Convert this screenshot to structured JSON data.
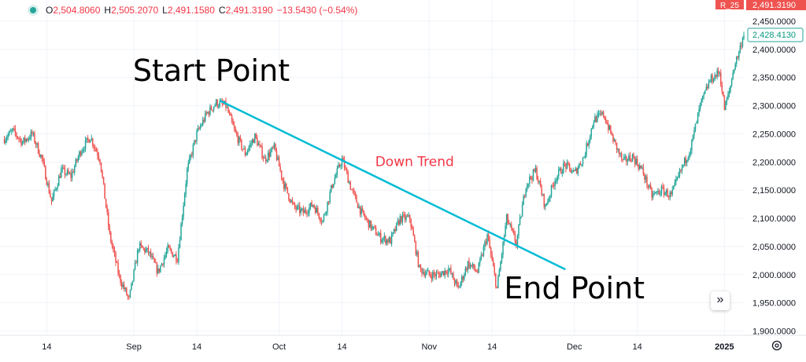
{
  "legend": {
    "open_key": "O",
    "open": "2,504.8060",
    "high_key": "H",
    "high": "2,505.2070",
    "low_key": "L",
    "low": "2,491.1580",
    "close_key": "C",
    "close": "2,491.3190",
    "change": "−13.5430 (−0.54%)"
  },
  "price_scale": {
    "symbol_tag": "R_25",
    "last_price": "2,491.3190",
    "crosshair_price": "2,428.4130"
  },
  "go_to_realtime_icon": "»",
  "colors": {
    "up": "#26a69a",
    "down": "#ef5350",
    "trendline": "#00bcd4",
    "annotation": "#f23645",
    "grid": "#f0f3fa"
  },
  "chart_data": {
    "type": "candlestick",
    "ylim": [
      1890,
      2460
    ],
    "y_ticks": [
      "2,450.0000",
      "2,400.0000",
      "2,350.0000",
      "2,300.0000",
      "2,250.0000",
      "2,200.0000",
      "2,150.0000",
      "2,100.0000",
      "2,050.0000",
      "2,000.0000",
      "1,950.0000",
      "1,900.0000"
    ],
    "y_tick_values": [
      2450,
      2400,
      2350,
      2300,
      2250,
      2200,
      2150,
      2100,
      2050,
      2000,
      1950,
      1900
    ],
    "x_ticks": [
      {
        "label": "14",
        "date": "2024-08-14",
        "bold": false
      },
      {
        "label": "Sep",
        "date": "2024-09-01",
        "bold": false
      },
      {
        "label": "14",
        "date": "2024-09-14",
        "bold": false
      },
      {
        "label": "Oct",
        "date": "2024-10-01",
        "bold": false
      },
      {
        "label": "14",
        "date": "2024-10-14",
        "bold": false
      },
      {
        "label": "Nov",
        "date": "2024-11-01",
        "bold": false
      },
      {
        "label": "14",
        "date": "2024-11-14",
        "bold": false
      },
      {
        "label": "Dec",
        "date": "2024-12-01",
        "bold": false
      },
      {
        "label": "14",
        "date": "2024-12-14",
        "bold": false
      },
      {
        "label": "2025",
        "date": "2025-01-01",
        "bold": true
      }
    ],
    "xlim": [
      "2024-08-05",
      "2025-01-05"
    ],
    "price_path": [
      [
        "2024-08-05",
        2240
      ],
      [
        "2024-08-07",
        2255
      ],
      [
        "2024-08-09",
        2235
      ],
      [
        "2024-08-11",
        2250
      ],
      [
        "2024-08-13",
        2205
      ],
      [
        "2024-08-15",
        2130
      ],
      [
        "2024-08-17",
        2185
      ],
      [
        "2024-08-19",
        2175
      ],
      [
        "2024-08-21",
        2220
      ],
      [
        "2024-08-23",
        2245
      ],
      [
        "2024-08-25",
        2205
      ],
      [
        "2024-08-27",
        2070
      ],
      [
        "2024-08-29",
        1995
      ],
      [
        "2024-08-31",
        1955
      ],
      [
        "2024-09-02",
        2050
      ],
      [
        "2024-09-04",
        2040
      ],
      [
        "2024-09-06",
        2005
      ],
      [
        "2024-09-08",
        2045
      ],
      [
        "2024-09-10",
        2030
      ],
      [
        "2024-09-12",
        2185
      ],
      [
        "2024-09-14",
        2250
      ],
      [
        "2024-09-16",
        2285
      ],
      [
        "2024-09-18",
        2305
      ],
      [
        "2024-09-20",
        2300
      ],
      [
        "2024-09-22",
        2250
      ],
      [
        "2024-09-24",
        2215
      ],
      [
        "2024-09-26",
        2245
      ],
      [
        "2024-09-28",
        2205
      ],
      [
        "2024-09-30",
        2225
      ],
      [
        "2024-10-02",
        2160
      ],
      [
        "2024-10-04",
        2120
      ],
      [
        "2024-10-06",
        2110
      ],
      [
        "2024-10-08",
        2125
      ],
      [
        "2024-10-10",
        2095
      ],
      [
        "2024-10-12",
        2160
      ],
      [
        "2024-10-14",
        2205
      ],
      [
        "2024-10-16",
        2150
      ],
      [
        "2024-10-18",
        2110
      ],
      [
        "2024-10-20",
        2085
      ],
      [
        "2024-10-22",
        2065
      ],
      [
        "2024-10-24",
        2060
      ],
      [
        "2024-10-26",
        2100
      ],
      [
        "2024-10-28",
        2100
      ],
      [
        "2024-10-30",
        2010
      ],
      [
        "2024-11-01",
        2000
      ],
      [
        "2024-11-03",
        2000
      ],
      [
        "2024-11-05",
        2010
      ],
      [
        "2024-11-07",
        1975
      ],
      [
        "2024-11-09",
        2020
      ],
      [
        "2024-11-11",
        2005
      ],
      [
        "2024-11-13",
        2070
      ],
      [
        "2024-11-15",
        1975
      ],
      [
        "2024-11-17",
        2100
      ],
      [
        "2024-11-19",
        2055
      ],
      [
        "2024-11-21",
        2160
      ],
      [
        "2024-11-23",
        2185
      ],
      [
        "2024-11-25",
        2120
      ],
      [
        "2024-11-27",
        2170
      ],
      [
        "2024-11-29",
        2195
      ],
      [
        "2024-12-01",
        2180
      ],
      [
        "2024-12-03",
        2210
      ],
      [
        "2024-12-05",
        2275
      ],
      [
        "2024-12-07",
        2285
      ],
      [
        "2024-12-09",
        2240
      ],
      [
        "2024-12-11",
        2200
      ],
      [
        "2024-12-13",
        2210
      ],
      [
        "2024-12-15",
        2185
      ],
      [
        "2024-12-17",
        2140
      ],
      [
        "2024-12-19",
        2150
      ],
      [
        "2024-12-21",
        2140
      ],
      [
        "2024-12-23",
        2185
      ],
      [
        "2024-12-25",
        2225
      ],
      [
        "2024-12-27",
        2300
      ],
      [
        "2024-12-29",
        2345
      ],
      [
        "2024-12-31",
        2360
      ],
      [
        "2025-01-01",
        2295
      ],
      [
        "2025-01-02",
        2325
      ],
      [
        "2025-01-03",
        2370
      ],
      [
        "2025-01-04",
        2395
      ],
      [
        "2025-01-05",
        2430
      ]
    ],
    "annotations": [
      {
        "text": "Start Point",
        "date": "2024-09-17",
        "value": 2344
      },
      {
        "text": "Down Trend",
        "date": "2024-10-29",
        "value": 2193
      },
      {
        "text": "End Point",
        "date": "2024-12-01",
        "value": 1958
      }
    ],
    "trendline": {
      "start": [
        "2024-09-19",
        2308
      ],
      "end": [
        "2024-11-29",
        2010
      ]
    }
  }
}
